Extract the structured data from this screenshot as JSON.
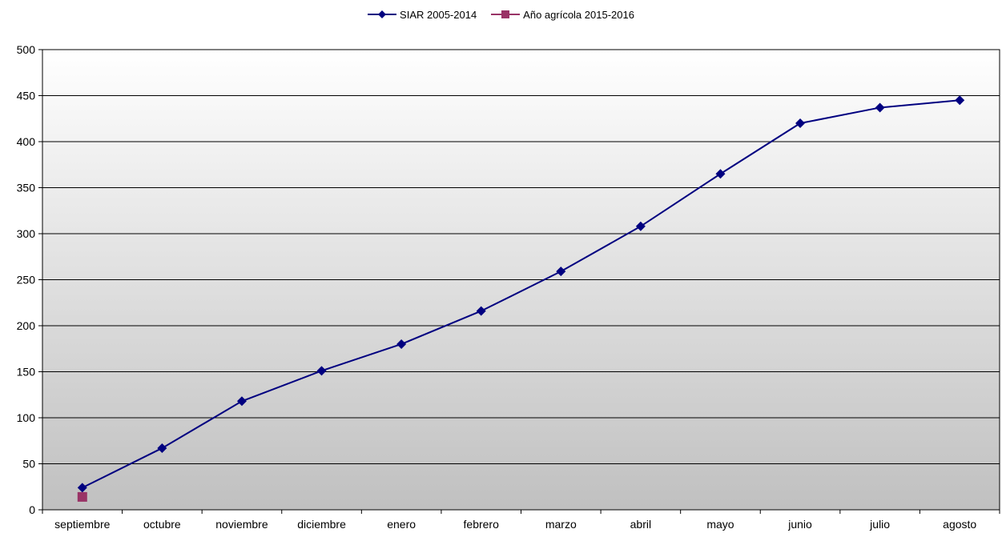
{
  "chart_data": {
    "type": "line",
    "title": "",
    "xlabel": "",
    "ylabel": "",
    "categories": [
      "septiembre",
      "octubre",
      "noviembre",
      "diciembre",
      "enero",
      "febrero",
      "marzo",
      "abril",
      "mayo",
      "junio",
      "julio",
      "agosto"
    ],
    "series": [
      {
        "name": "SIAR 2005-2014",
        "color": "#000080",
        "marker": "diamond",
        "values": [
          24,
          67,
          118,
          151,
          180,
          216,
          259,
          308,
          365,
          420,
          437,
          445
        ]
      },
      {
        "name": "Año agrícola 2015-2016",
        "color": "#993366",
        "marker": "square",
        "values": [
          14,
          null,
          null,
          null,
          null,
          null,
          null,
          null,
          null,
          null,
          null,
          null
        ]
      }
    ],
    "ylim": [
      0,
      500
    ],
    "yticks": [
      0,
      50,
      100,
      150,
      200,
      250,
      300,
      350,
      400,
      450,
      500
    ],
    "grid": true,
    "legend_position": "top-center",
    "background": "gradient white to gray"
  }
}
